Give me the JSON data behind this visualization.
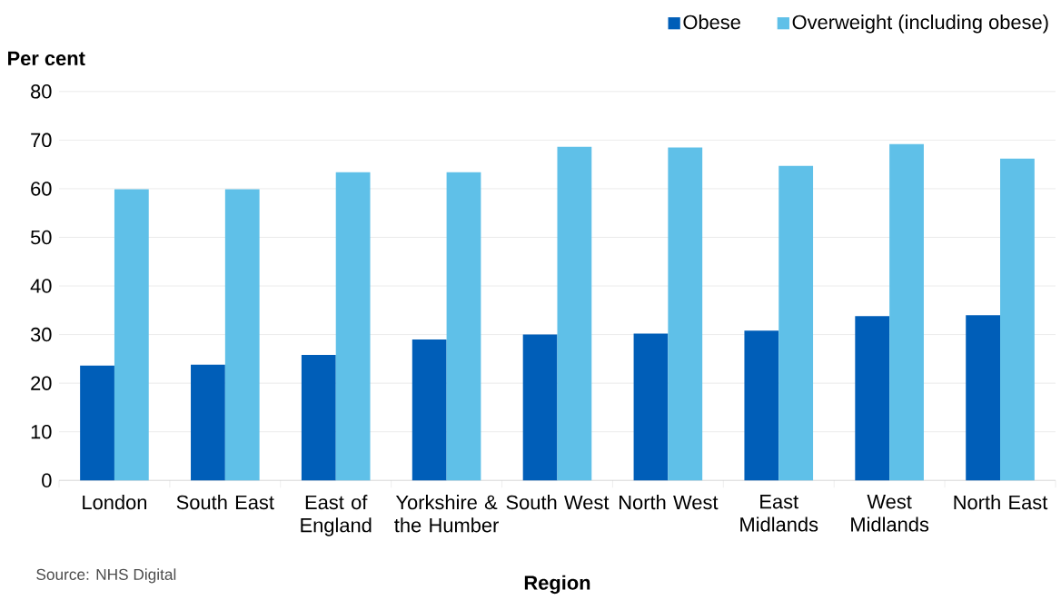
{
  "chart_data": {
    "type": "bar",
    "xlabel": "Region",
    "ylabel": "Per cent",
    "categories": [
      "London",
      "South East",
      "East of England",
      "Yorkshire & the Humber",
      "South West",
      "North West",
      "East Midlands",
      "West Midlands",
      "North East"
    ],
    "series": [
      {
        "name": "Obese",
        "color": "#005eb8",
        "values": [
          23.6,
          23.8,
          25.8,
          29.0,
          30.0,
          30.2,
          30.8,
          33.8,
          34.0
        ]
      },
      {
        "name": "Overweight (including obese)",
        "color": "#5fc0e8",
        "values": [
          59.9,
          59.9,
          63.4,
          63.4,
          68.6,
          68.5,
          64.7,
          69.2,
          66.2
        ]
      }
    ],
    "ylim": [
      0,
      80
    ],
    "yticks": [
      0,
      10,
      20,
      30,
      40,
      50,
      60,
      70,
      80
    ],
    "grid": "y",
    "legend": "top right",
    "annotations": [
      "Source: NHS Digital"
    ]
  }
}
